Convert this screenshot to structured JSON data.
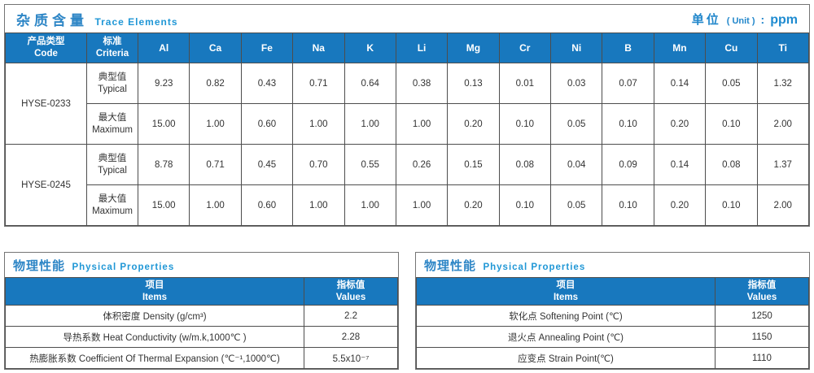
{
  "colors": {
    "header_bg": "#1878be",
    "title_blue": "#2e86c6",
    "subtitle_blue": "#2097d6",
    "unit_blue": "#1e8bd0",
    "cell_border": "#4d4d4d",
    "outer_border": "#747474",
    "text": "#333333"
  },
  "trace": {
    "title_cn": "杂质含量",
    "title_en": "Trace Elements",
    "unit_cn": "单位",
    "unit_en": "( Unit )",
    "unit_sep": ":",
    "unit_value": "ppm",
    "col_code": {
      "cn": "产品类型",
      "en": "Code"
    },
    "col_criteria": {
      "cn": "标准",
      "en": "Criteria"
    },
    "elements": [
      "Al",
      "Ca",
      "Fe",
      "Na",
      "K",
      "Li",
      "Mg",
      "Cr",
      "Ni",
      "B",
      "Mn",
      "Cu",
      "Ti"
    ],
    "groups": [
      {
        "code": "HYSE-0233",
        "rows": [
          {
            "label_cn": "典型值",
            "label_en": "Typical",
            "values": [
              "9.23",
              "0.82",
              "0.43",
              "0.71",
              "0.64",
              "0.38",
              "0.13",
              "0.01",
              "0.03",
              "0.07",
              "0.14",
              "0.05",
              "1.32"
            ]
          },
          {
            "label_cn": "最大值",
            "label_en": "Maximum",
            "values": [
              "15.00",
              "1.00",
              "0.60",
              "1.00",
              "1.00",
              "1.00",
              "0.20",
              "0.10",
              "0.05",
              "0.10",
              "0.20",
              "0.10",
              "2.00"
            ]
          }
        ]
      },
      {
        "code": "HYSE-0245",
        "rows": [
          {
            "label_cn": "典型值",
            "label_en": "Typical",
            "values": [
              "8.78",
              "0.71",
              "0.45",
              "0.70",
              "0.55",
              "0.26",
              "0.15",
              "0.08",
              "0.04",
              "0.09",
              "0.14",
              "0.08",
              "1.37"
            ]
          },
          {
            "label_cn": "最大值",
            "label_en": "Maximum",
            "values": [
              "15.00",
              "1.00",
              "0.60",
              "1.00",
              "1.00",
              "1.00",
              "0.20",
              "0.10",
              "0.05",
              "0.10",
              "0.20",
              "0.10",
              "2.00"
            ]
          }
        ]
      }
    ]
  },
  "physical_left": {
    "title_cn": "物理性能",
    "title_en": "Physical Properties",
    "col_items": {
      "cn": "项目",
      "en": "Items"
    },
    "col_values": {
      "cn": "指标值",
      "en": "Values"
    },
    "rows": [
      {
        "item": "体积密度 Density (g/cm³)",
        "value": "2.2"
      },
      {
        "item": "导热系数 Heat Conductivity (w/m.k,1000℃ )",
        "value": "2.28"
      },
      {
        "item": "热膨胀系数 Coefficient Of Thermal Expansion (℃⁻¹,1000℃)",
        "value": "5.5x10⁻⁷"
      }
    ]
  },
  "physical_right": {
    "title_cn": "物理性能",
    "title_en": "Physical Properties",
    "col_items": {
      "cn": "项目",
      "en": "Items"
    },
    "col_values": {
      "cn": "指标值",
      "en": "Values"
    },
    "rows": [
      {
        "item": "软化点 Softening Point (℃)",
        "value": "1250"
      },
      {
        "item": "退火点 Annealing Point (℃)",
        "value": "1150"
      },
      {
        "item": "应变点 Strain Point(℃)",
        "value": "1110"
      }
    ]
  }
}
